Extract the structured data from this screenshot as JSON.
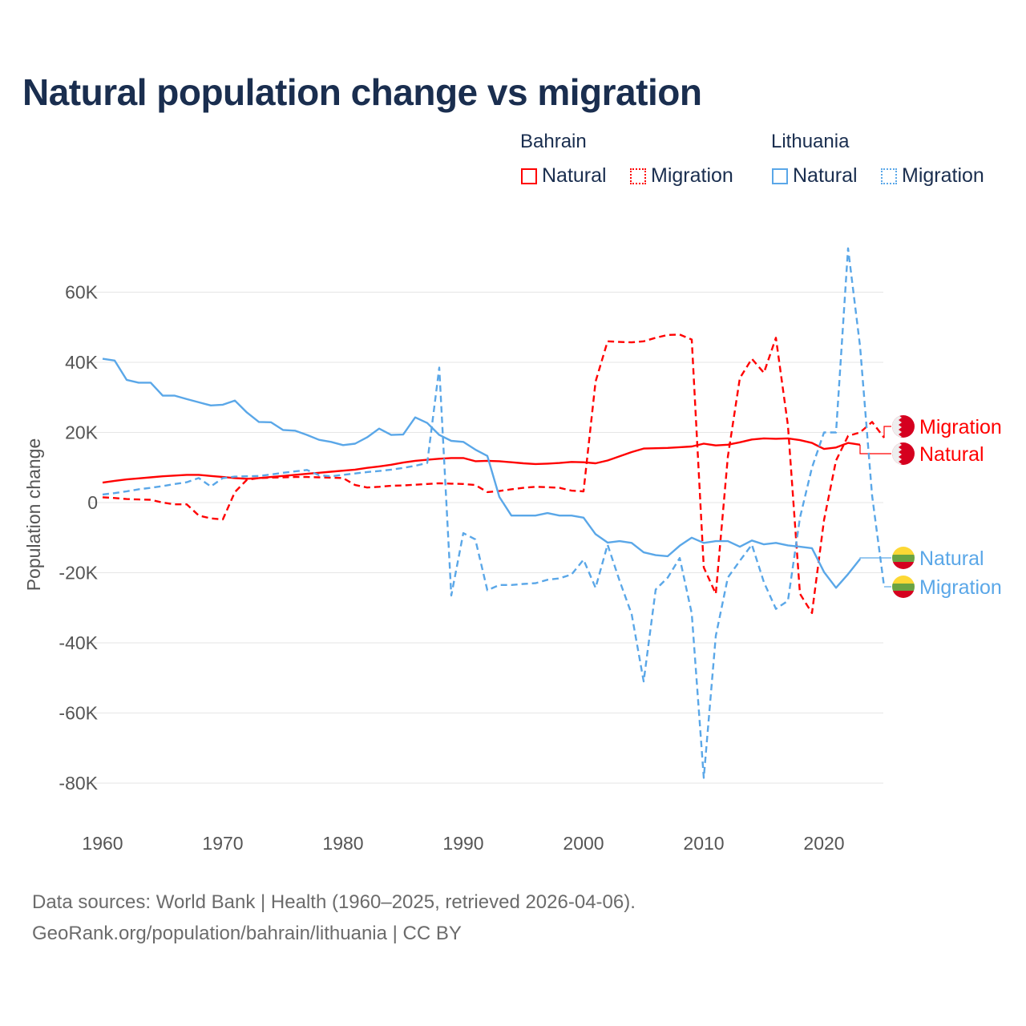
{
  "title": "Natural population change vs migration",
  "legend": {
    "groups": [
      {
        "name": "Bahrain",
        "color": "#ff0000",
        "items": [
          "Natural",
          "Migration"
        ]
      },
      {
        "name": "Lithuania",
        "color": "#5aa7e8",
        "items": [
          "Natural",
          "Migration"
        ]
      }
    ]
  },
  "footer": {
    "line1": "Data sources: World Bank | Health (1960–2025, retrieved 2026-04-06).",
    "line2": "GeoRank.org/population/bahrain/lithuania | CC BY"
  },
  "chart_data": {
    "type": "line",
    "title": "Natural population change vs migration",
    "xlabel": "",
    "ylabel": "Population change",
    "xlim": [
      1960,
      2025
    ],
    "ylim": [
      -90000,
      70000
    ],
    "x_ticks": [
      1960,
      1970,
      1980,
      1990,
      2000,
      2010,
      2020
    ],
    "x_tick_labels": [
      "1960",
      "1970",
      "1980",
      "1990",
      "2000",
      "2010",
      "2020"
    ],
    "y_ticks": [
      60000,
      40000,
      20000,
      0,
      -20000,
      -40000,
      -60000,
      -80000
    ],
    "y_tick_labels": [
      "60K",
      "40K",
      "20K",
      "0",
      "-20K",
      "-40K",
      "-60K",
      "-80K"
    ],
    "grid": true,
    "legend_position": "top-right",
    "series": [
      {
        "name": "Bahrain Natural",
        "end_label": "Natural",
        "country": "Bahrain",
        "color": "#ff0000",
        "dashed": false,
        "start": 1960,
        "values": [
          5700,
          6200,
          6600,
          6900,
          7200,
          7500,
          7700,
          7900,
          7900,
          7600,
          7300,
          7000,
          6800,
          7000,
          7300,
          7600,
          7900,
          8200,
          8500,
          8800,
          9100,
          9400,
          9900,
          10300,
          10800,
          11400,
          11900,
          12200,
          12500,
          12700,
          12700,
          11800,
          11900,
          11800,
          11500,
          11200,
          11000,
          11100,
          11300,
          11600,
          11500,
          11200,
          12000,
          13200,
          14400,
          15400,
          15500,
          15600,
          15800,
          16000,
          16800,
          16300,
          16500,
          17200,
          18000,
          18300,
          18200,
          18300,
          17800,
          17000,
          15300,
          15700,
          17000,
          16500
        ]
      },
      {
        "name": "Bahrain Migration",
        "end_label": "Migration",
        "country": "Bahrain",
        "color": "#ff0000",
        "dashed": true,
        "start": 1960,
        "values": [
          1500,
          1300,
          1000,
          900,
          800,
          0,
          -500,
          -500,
          -3700,
          -4500,
          -4800,
          3000,
          6500,
          7000,
          7100,
          7200,
          7300,
          7300,
          7200,
          7100,
          7000,
          5000,
          4300,
          4500,
          4800,
          4900,
          5100,
          5300,
          5500,
          5400,
          5300,
          5000,
          3000,
          3300,
          3800,
          4200,
          4500,
          4400,
          4200,
          3400,
          3200,
          34500,
          46000,
          45800,
          45700,
          46000,
          47000,
          47800,
          47900,
          46500,
          -18500,
          -26000,
          13000,
          35500,
          41000,
          37000,
          47000,
          22000,
          -26000,
          -31500,
          -5000,
          12000,
          19000,
          20000,
          23000,
          18500
        ]
      },
      {
        "name": "Lithuania Natural",
        "end_label": "Natural",
        "country": "Lithuania",
        "color": "#5aa7e8",
        "dashed": false,
        "start": 1960,
        "values": [
          41000,
          40500,
          35000,
          34200,
          34200,
          30500,
          30500,
          29500,
          28600,
          27700,
          27900,
          29100,
          25700,
          23000,
          22900,
          20700,
          20500,
          19300,
          17900,
          17300,
          16400,
          16800,
          18600,
          21100,
          19300,
          19400,
          24300,
          22700,
          19300,
          17600,
          17300,
          15100,
          13300,
          1600,
          -3700,
          -3700,
          -3700,
          -3000,
          -3700,
          -3700,
          -4300,
          -9000,
          -11400,
          -11000,
          -11500,
          -14200,
          -15000,
          -15300,
          -12300,
          -10000,
          -11500,
          -11000,
          -11000,
          -12600,
          -10800,
          -11900,
          -11500,
          -12200,
          -12600,
          -13000,
          -19800,
          -24300,
          -20400,
          -16100
        ]
      },
      {
        "name": "Lithuania Migration",
        "end_label": "Migration",
        "country": "Lithuania",
        "color": "#5aa7e8",
        "dashed": true,
        "start": 1960,
        "values": [
          2300,
          2700,
          3200,
          3800,
          4200,
          4700,
          5300,
          5800,
          7000,
          4600,
          7000,
          7400,
          7500,
          7600,
          8000,
          8500,
          8900,
          9300,
          7800,
          7500,
          7900,
          8300,
          8700,
          9000,
          9400,
          9900,
          10500,
          11300,
          38500,
          -26500,
          -8700,
          -10500,
          -25000,
          -23500,
          -23500,
          -23200,
          -23000,
          -22000,
          -21600,
          -20500,
          -16300,
          -24300,
          -12000,
          -22300,
          -31800,
          -51000,
          -24800,
          -21400,
          -15800,
          -31600,
          -78500,
          -38000,
          -21400,
          -16600,
          -12000,
          -22700,
          -30300,
          -28000,
          -4300,
          10000,
          20000,
          20000,
          72500,
          44500,
          2000,
          -24000
        ]
      }
    ]
  }
}
